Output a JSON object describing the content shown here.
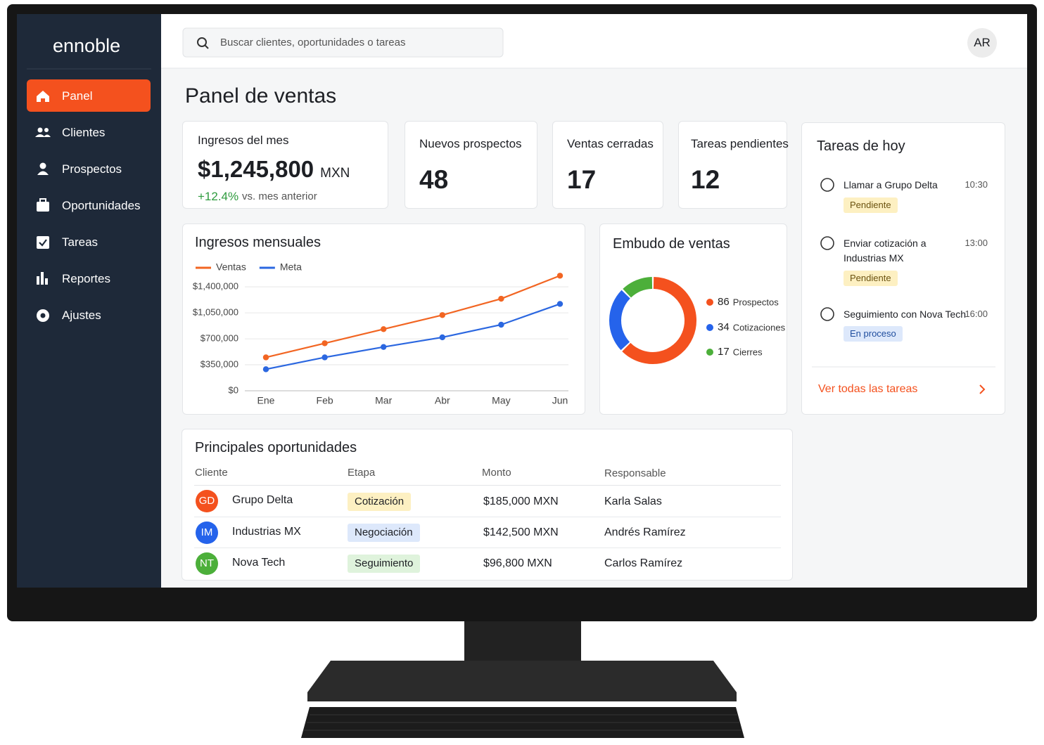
{
  "sidebar": {
    "brand": "ennoble",
    "menu": [
      "Panel",
      "Clientes",
      "Prospectos",
      "Oportunidades",
      "Tareas",
      "Reportes",
      "Ajustes"
    ]
  },
  "header": {
    "search_placeholder": "Buscar clientes, oportunidades o tareas",
    "avatar": "AR"
  },
  "page_title": "Panel de ventas",
  "kpis": [
    {
      "label": "Ingresos del mes",
      "value": "$1,245,800",
      "unit": "MXN",
      "change": "+12.4%",
      "change_note": "vs. mes anterior"
    },
    {
      "label": "Nuevos prospectos",
      "value": 48
    },
    {
      "label": "Ventas cerradas",
      "value": 17
    },
    {
      "label": "Tareas pendientes",
      "value": 12
    }
  ],
  "chart_data": [
    {
      "type": "line",
      "title": "Ingresos mensuales",
      "categories": [
        "Ene",
        "Feb",
        "Mar",
        "Abr",
        "May",
        "Jun"
      ],
      "series": [
        {
          "name": "Ventas",
          "color": "#f26522",
          "values": [
            450000,
            640000,
            830000,
            1020000,
            1240000,
            1550000
          ]
        },
        {
          "name": "Meta",
          "color": "#2b67e0",
          "values": [
            290000,
            450000,
            590000,
            720000,
            890000,
            1170000
          ]
        }
      ],
      "ylim": [
        0,
        1600000
      ],
      "yticks": [
        {
          "value": 0,
          "label": "$0"
        },
        {
          "value": 350000,
          "label": "$350,000"
        },
        {
          "value": 700000,
          "label": "$700,000"
        },
        {
          "value": 1050000,
          "label": "$1,050,000"
        },
        {
          "value": 1400000,
          "label": "$1,400,000"
        }
      ],
      "grid": true
    },
    {
      "type": "donut",
      "title": "Embudo de ventas",
      "categories": [
        "Prospectos",
        "Cotizaciones",
        "Cierres"
      ],
      "values": [
        86,
        34,
        17
      ],
      "colors": [
        "#f4511e",
        "#2563eb",
        "#4caf3a"
      ]
    }
  ],
  "tasks": {
    "title": "Tareas de hoy",
    "items": [
      {
        "title": "Llamar a Grupo Delta",
        "time": "10:30",
        "status": "Pendiente"
      },
      {
        "title": "Enviar cotización a Industrias MX",
        "time": "13:00",
        "status": "Pendiente"
      },
      {
        "title": "Seguimiento con Nova Tech",
        "time": "16:00",
        "status": "En proceso"
      }
    ],
    "link": "Ver todas las tareas"
  },
  "opportunities": {
    "title": "Principales oportunidades",
    "columns": [
      "Cliente",
      "Etapa",
      "Monto",
      "Responsable"
    ],
    "rows": [
      {
        "initials": "GD",
        "client": "Grupo Delta",
        "stage": "Cotización",
        "amount": "$185,000 MXN",
        "owner": "Karla Salas"
      },
      {
        "initials": "IM",
        "client": "Industrias MX",
        "stage": "Negociación",
        "amount": "$142,500 MXN",
        "owner": "Andrés Ramírez"
      },
      {
        "initials": "NT",
        "client": "Nova Tech",
        "stage": "Seguimiento",
        "amount": "$96,800 MXN",
        "owner": "Carlos Ramírez"
      }
    ]
  }
}
